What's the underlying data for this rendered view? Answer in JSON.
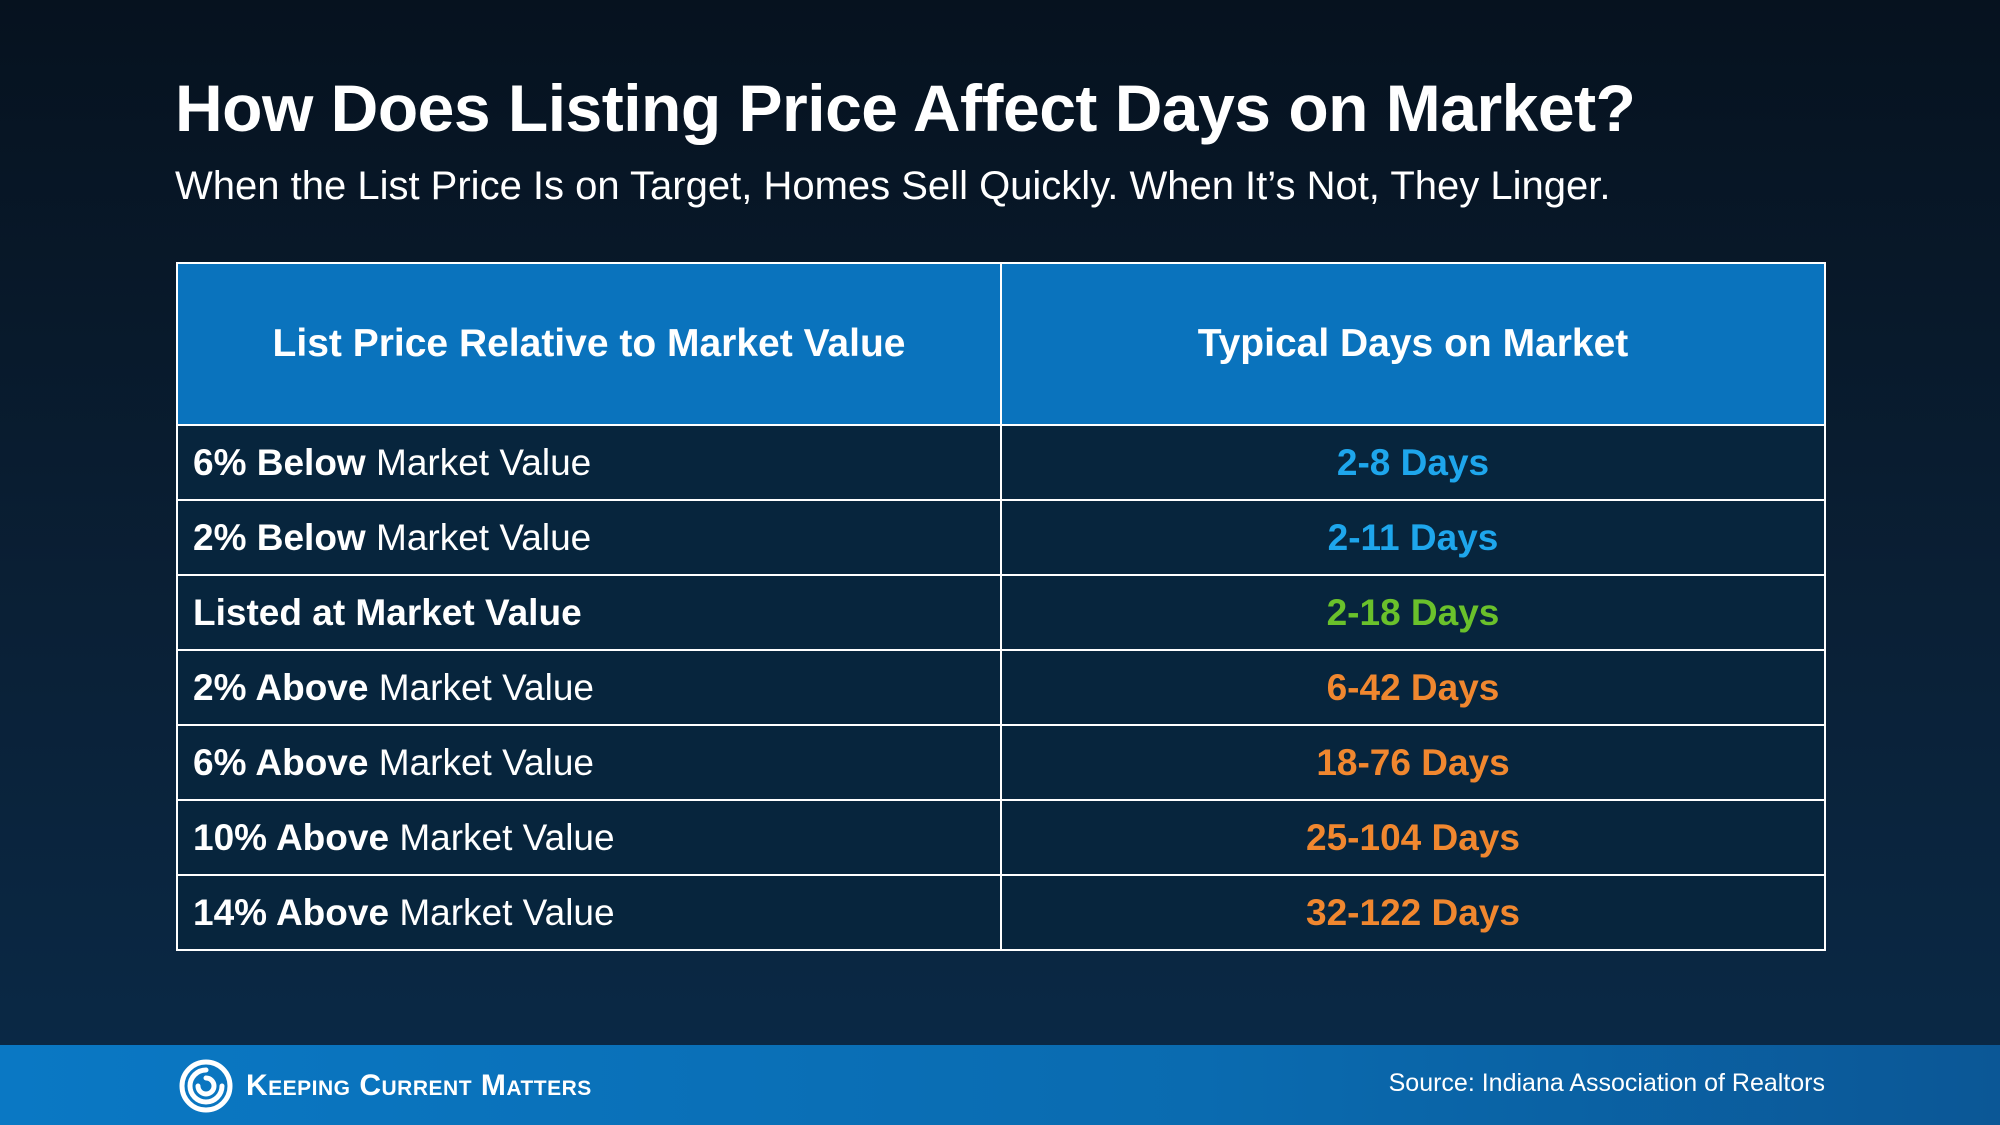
{
  "title": "How Does Listing Price Affect Days on Market?",
  "subtitle": "When the List Price Is on Target, Homes Sell Quickly. When It’s Not, They Linger.",
  "colors": {
    "header_bg": "#0a73bd",
    "cell_bg": "#07253d",
    "below": "#1ea6ec",
    "at": "#6ac12b",
    "above": "#f0872f"
  },
  "chart_data": {
    "type": "table",
    "columns": [
      "List Price Relative to Market Value",
      "Typical Days on Market"
    ],
    "rows": [
      {
        "bold": "6% Below",
        "rest": " Market Value",
        "days": "2-8 Days",
        "tone": "below"
      },
      {
        "bold": "2% Below",
        "rest": " Market Value",
        "days": "2-11 Days",
        "tone": "below"
      },
      {
        "bold": "Listed at Market Value",
        "rest": "",
        "days": "2-18 Days",
        "tone": "at"
      },
      {
        "bold": "2% Above",
        "rest": " Market Value",
        "days": "6-42 Days",
        "tone": "above"
      },
      {
        "bold": "6% Above",
        "rest": " Market Value",
        "days": "18-76 Days",
        "tone": "above"
      },
      {
        "bold": "10% Above",
        "rest": " Market Value",
        "days": "25-104 Days",
        "tone": "above"
      },
      {
        "bold": "14% Above",
        "rest": " Market Value",
        "days": "32-122 Days",
        "tone": "above"
      }
    ]
  },
  "footer": {
    "brand": "Keeping Current Matters",
    "logo_icon": "swirl-logo-icon",
    "source": "Source: Indiana Association of Realtors"
  }
}
